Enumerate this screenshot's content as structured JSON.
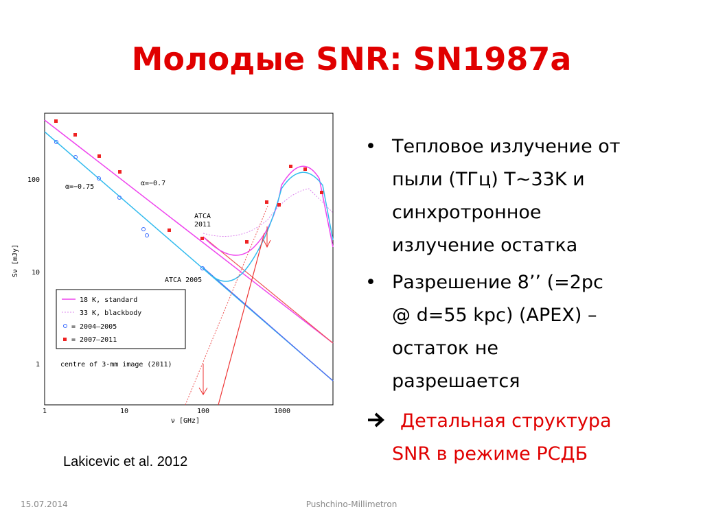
{
  "slide": {
    "title": "Молодые SNR: SN1987a",
    "figure": {
      "x_ticks": [
        "1",
        "10",
        "100",
        "1000"
      ],
      "y_ticks": [
        "1",
        "10",
        "100"
      ],
      "x_label": "ν [GHz]",
      "y_label": "Sν [mJy]",
      "annotations": [
        "α=−0.75",
        "α=−0.7",
        "ATCA",
        "2011",
        "ATCA 2005",
        "centre of 3-mm image (2011)"
      ],
      "legend": [
        "18 K, standard",
        "33 K, blackbody",
        "= 2004–2005",
        "= 2007–2011"
      ]
    },
    "caption": "Lakicevic et al. 2012",
    "bullets": [
      "Тепловое излучение от",
      "пыли (ТГц)  T~33K и",
      "синхротронное",
      "излучение остатка",
      "Разрешение 8’’ (=2pc",
      "@ d=55 kpc) (APEX) –",
      "остаток не",
      "разрешается"
    ],
    "arrow_bullet": [
      "Детальная структура",
      "SNR в режиме РСДБ"
    ],
    "footer": {
      "date": "15.07.2014",
      "center": "Pushchino-Millimetron"
    }
  }
}
